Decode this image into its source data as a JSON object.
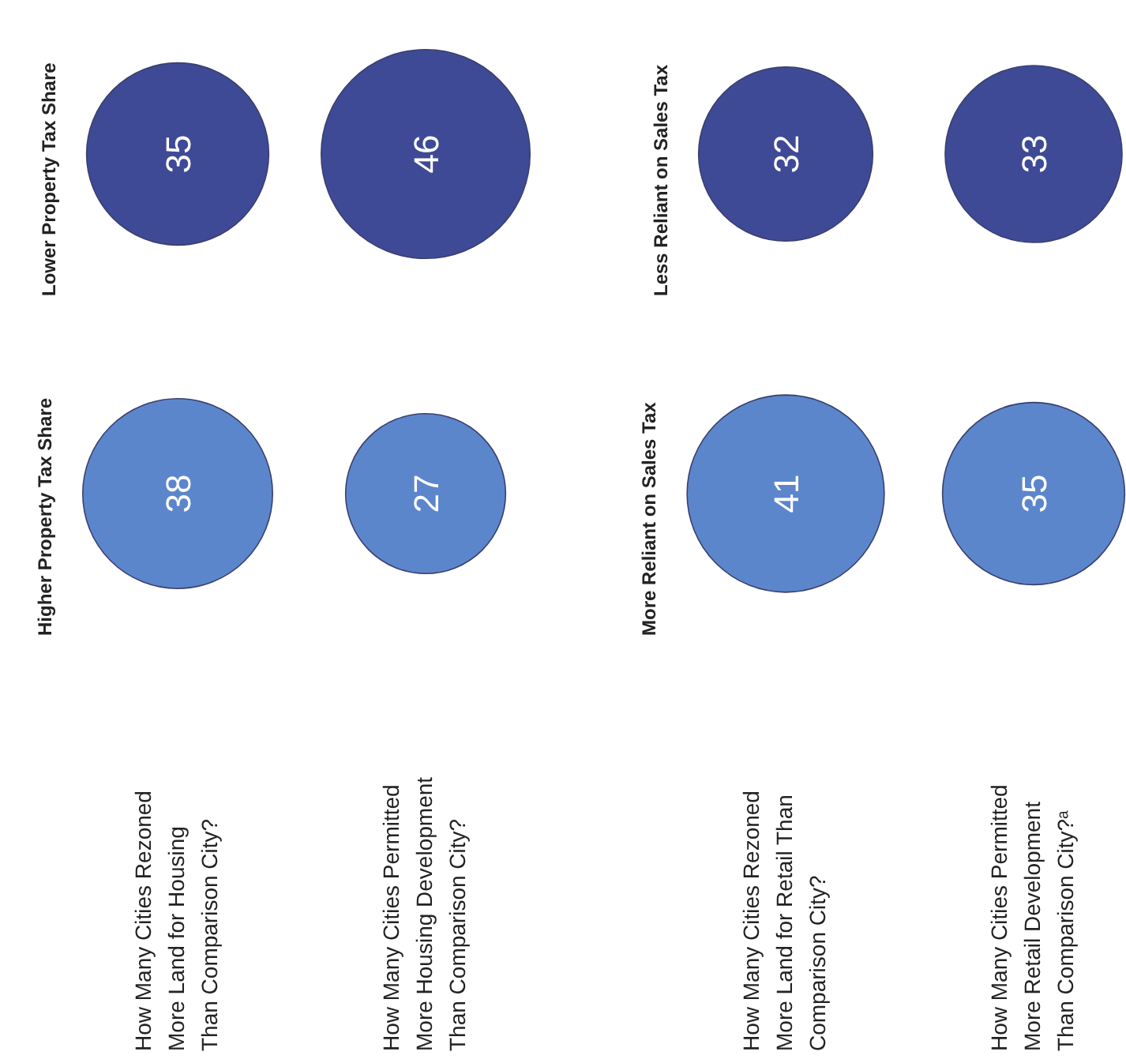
{
  "chart_data": [
    {
      "type": "other",
      "categories": [
        "How Many Cities Rezoned\nMore Land for Housing\nThan Comparison City?",
        "How Many Cities Permitted\nMore Housing Development\nThan Comparison City?"
      ],
      "series": [
        {
          "name": "Higher Property Tax Share",
          "color": "#5b86cc",
          "values": [
            38,
            27
          ]
        },
        {
          "name": "Lower Property Tax Share",
          "color": "#3f4a96",
          "values": [
            35,
            46
          ]
        }
      ],
      "data_labels": true
    },
    {
      "type": "other",
      "categories": [
        "How Many Cities Rezoned\nMore Land for Retail Than\nComparison City?",
        "How Many Cities Permitted\nMore Retail Development\nThan Comparison City?ᵃ"
      ],
      "series": [
        {
          "name": "More Reliant on Sales Tax",
          "color": "#5b86cc",
          "values": [
            41,
            35
          ]
        },
        {
          "name": "Less Reliant on Sales Tax",
          "color": "#3f4a96",
          "values": [
            32,
            33
          ]
        }
      ],
      "data_labels": true
    }
  ]
}
